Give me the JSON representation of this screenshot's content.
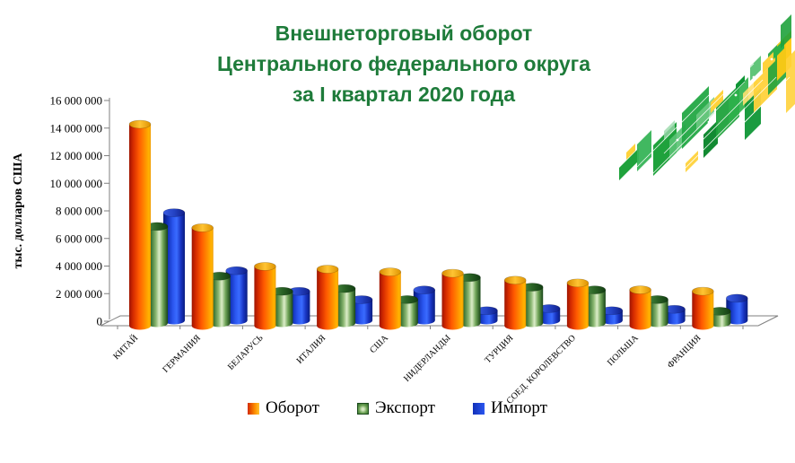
{
  "title": {
    "lines": [
      "Внешнеторговый оборот",
      "Центрального федерального округа",
      "за I квартал 2020 года"
    ],
    "color": "#1e7b3a"
  },
  "chart_data": {
    "type": "bar",
    "variant": "3d-cylinder",
    "title": "Внешнеторговый оборот Центрального федерального округа за I квартал 2020 года",
    "xlabel": "",
    "ylabel": "тыс. долларов США",
    "ylim": [
      0,
      16000000
    ],
    "ytick_step": 2000000,
    "ytick_labels": [
      "0",
      "2 000 000",
      "4 000 000",
      "6 000 000",
      "8 000 000",
      "10 000 000",
      "12 000 000",
      "14 000 000",
      "16 000 000"
    ],
    "grid": false,
    "legend_position": "bottom",
    "categories": [
      "КИТАЙ",
      "ГЕРМАНИЯ",
      "БЕЛАРУСЬ",
      "ИТАЛИЯ",
      "США",
      "НИДЕРЛАНДЫ",
      "ТУРЦИЯ",
      "СОЕД. КОРОЛЕВСТВО",
      "ПОЛЬША",
      "ФРАНЦИЯ"
    ],
    "series": [
      {
        "name": "Оборот",
        "color": "#ff6a00",
        "values": [
          14600000,
          7100000,
          4300000,
          4100000,
          3900000,
          3800000,
          3300000,
          3100000,
          2600000,
          2500000
        ]
      },
      {
        "name": "Экспорт",
        "color": "#4e8a3c",
        "values": [
          7000000,
          3400000,
          2300000,
          2500000,
          1700000,
          3300000,
          2600000,
          2400000,
          1700000,
          850000
        ]
      },
      {
        "name": "Импорт",
        "color": "#2047e0",
        "values": [
          7800000,
          3600000,
          2100000,
          1500000,
          2200000,
          700000,
          850000,
          700000,
          800000,
          1600000
        ]
      }
    ]
  },
  "colors": {
    "axis": "#7f7f7f",
    "tick_text": "#000000"
  }
}
